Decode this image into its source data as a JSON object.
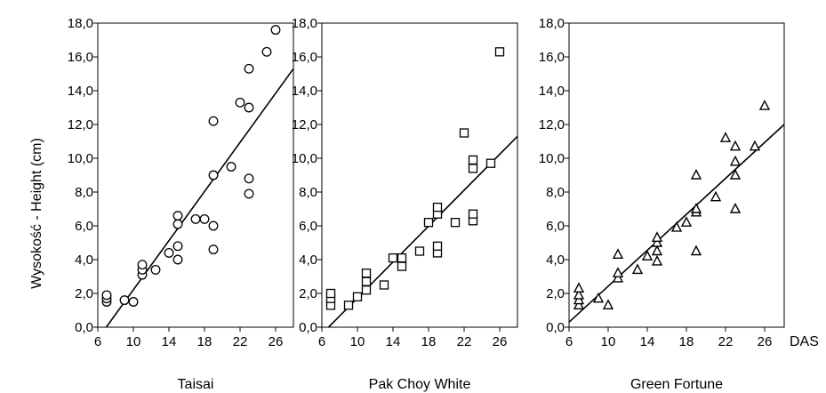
{
  "figure": {
    "ylabel": "Wysokość - Height (cm)",
    "x_unit": "DAS"
  },
  "chart_data": [
    {
      "type": "scatter",
      "title": "Taisai",
      "marker": "circle",
      "xlim": [
        6,
        28
      ],
      "ylim": [
        0,
        18
      ],
      "xticks": [
        "6",
        "10",
        "14",
        "18",
        "22",
        "26"
      ],
      "yticks": [
        "0,0",
        "2,0",
        "4,0",
        "6,0",
        "8,0",
        "10,0",
        "12,0",
        "14,0",
        "16,0",
        "18,0"
      ],
      "points": [
        {
          "x": 7,
          "y": 1.5
        },
        {
          "x": 7,
          "y": 1.7
        },
        {
          "x": 7,
          "y": 1.9
        },
        {
          "x": 9,
          "y": 1.6
        },
        {
          "x": 10,
          "y": 1.5
        },
        {
          "x": 11,
          "y": 3.1
        },
        {
          "x": 11,
          "y": 3.4
        },
        {
          "x": 11,
          "y": 3.7
        },
        {
          "x": 12.5,
          "y": 3.4
        },
        {
          "x": 14,
          "y": 4.4
        },
        {
          "x": 15,
          "y": 4.0
        },
        {
          "x": 15,
          "y": 4.8
        },
        {
          "x": 15,
          "y": 6.1
        },
        {
          "x": 15,
          "y": 6.6
        },
        {
          "x": 17,
          "y": 6.4
        },
        {
          "x": 18,
          "y": 6.4
        },
        {
          "x": 19,
          "y": 4.6
        },
        {
          "x": 19,
          "y": 6.0
        },
        {
          "x": 19,
          "y": 9.0
        },
        {
          "x": 19,
          "y": 12.2
        },
        {
          "x": 21,
          "y": 9.5
        },
        {
          "x": 22,
          "y": 13.3
        },
        {
          "x": 23,
          "y": 7.9
        },
        {
          "x": 23,
          "y": 8.8
        },
        {
          "x": 23,
          "y": 13.0
        },
        {
          "x": 23,
          "y": 15.3
        },
        {
          "x": 25,
          "y": 16.3
        },
        {
          "x": 26,
          "y": 17.6
        }
      ],
      "trend": {
        "x0": 6.95,
        "y0": 0.0,
        "x1": 28,
        "y1": 15.3
      }
    },
    {
      "type": "scatter",
      "title": "Pak Choy White",
      "marker": "square",
      "xlim": [
        6,
        28
      ],
      "ylim": [
        0,
        18
      ],
      "xticks": [
        "6",
        "10",
        "14",
        "18",
        "22",
        "26"
      ],
      "yticks": [
        "0,0",
        "2,0",
        "4,0",
        "6,0",
        "8,0",
        "10,0",
        "12,0",
        "14,0",
        "16,0",
        "18,0"
      ],
      "points": [
        {
          "x": 7,
          "y": 1.3
        },
        {
          "x": 7,
          "y": 1.7
        },
        {
          "x": 7,
          "y": 2.0
        },
        {
          "x": 9,
          "y": 1.3
        },
        {
          "x": 10,
          "y": 1.8
        },
        {
          "x": 11,
          "y": 2.2
        },
        {
          "x": 11,
          "y": 2.7
        },
        {
          "x": 11,
          "y": 3.2
        },
        {
          "x": 13,
          "y": 2.5
        },
        {
          "x": 14,
          "y": 4.1
        },
        {
          "x": 15,
          "y": 3.6
        },
        {
          "x": 15,
          "y": 4.1
        },
        {
          "x": 17,
          "y": 4.5
        },
        {
          "x": 18,
          "y": 6.2
        },
        {
          "x": 19,
          "y": 4.4
        },
        {
          "x": 19,
          "y": 4.8
        },
        {
          "x": 19,
          "y": 6.7
        },
        {
          "x": 19,
          "y": 7.1
        },
        {
          "x": 21,
          "y": 6.2
        },
        {
          "x": 22,
          "y": 11.5
        },
        {
          "x": 23,
          "y": 6.3
        },
        {
          "x": 23,
          "y": 6.7
        },
        {
          "x": 23,
          "y": 9.4
        },
        {
          "x": 23,
          "y": 9.9
        },
        {
          "x": 25,
          "y": 9.7
        },
        {
          "x": 26,
          "y": 16.3
        }
      ],
      "trend": {
        "x0": 6.75,
        "y0": 0.0,
        "x1": 28,
        "y1": 11.3
      }
    },
    {
      "type": "scatter",
      "title": "Green Fortune",
      "marker": "triangle",
      "xlim": [
        6,
        28
      ],
      "ylim": [
        0,
        18
      ],
      "xticks": [
        "6",
        "10",
        "14",
        "18",
        "22",
        "26"
      ],
      "yticks": [
        "0,0",
        "2,0",
        "4,0",
        "6,0",
        "8,0",
        "10,0",
        "12,0",
        "14,0",
        "16,0",
        "18,0"
      ],
      "points": [
        {
          "x": 7,
          "y": 1.3
        },
        {
          "x": 7,
          "y": 1.6
        },
        {
          "x": 7,
          "y": 1.9
        },
        {
          "x": 7,
          "y": 2.3
        },
        {
          "x": 9,
          "y": 1.7
        },
        {
          "x": 10,
          "y": 1.3
        },
        {
          "x": 11,
          "y": 2.9
        },
        {
          "x": 11,
          "y": 3.2
        },
        {
          "x": 11,
          "y": 4.3
        },
        {
          "x": 13,
          "y": 3.4
        },
        {
          "x": 14,
          "y": 4.2
        },
        {
          "x": 15,
          "y": 3.9
        },
        {
          "x": 15,
          "y": 4.5
        },
        {
          "x": 15,
          "y": 5.0
        },
        {
          "x": 15,
          "y": 5.3
        },
        {
          "x": 17,
          "y": 5.9
        },
        {
          "x": 18,
          "y": 6.2
        },
        {
          "x": 19,
          "y": 4.5
        },
        {
          "x": 19,
          "y": 6.8
        },
        {
          "x": 19,
          "y": 7.0
        },
        {
          "x": 19,
          "y": 9.0
        },
        {
          "x": 21,
          "y": 7.7
        },
        {
          "x": 22,
          "y": 11.2
        },
        {
          "x": 23,
          "y": 7.0
        },
        {
          "x": 23,
          "y": 9.0
        },
        {
          "x": 23,
          "y": 9.8
        },
        {
          "x": 23,
          "y": 10.7
        },
        {
          "x": 25,
          "y": 10.7
        },
        {
          "x": 26,
          "y": 13.1
        }
      ],
      "trend": {
        "x0": 6,
        "y0": 0.3,
        "x1": 28,
        "y1": 12.0
      }
    }
  ]
}
